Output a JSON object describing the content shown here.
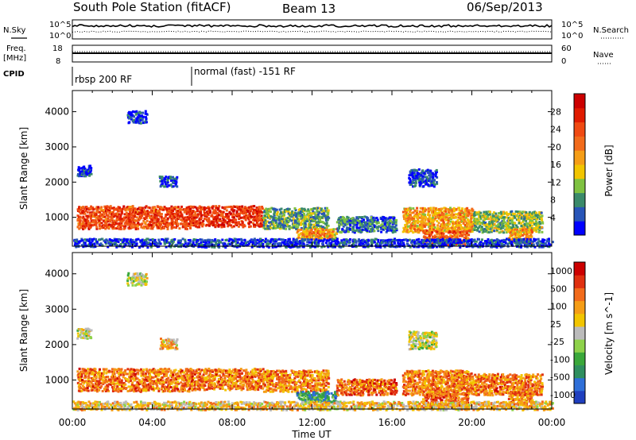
{
  "header": {
    "station": "South Pole Station (fitACF)",
    "beam": "Beam 13",
    "date": "06/Sep/2013"
  },
  "params_panel": {
    "nsky_label": "N.Sky",
    "nsky_ticks": [
      "10^5",
      "10^0"
    ],
    "nsearch_label": "N.Search",
    "nsearch_ticks": [
      "10^5",
      "10^0"
    ],
    "freq_label": "Freq.",
    "freq_unit": "[MHz]",
    "freq_ticks": [
      "18",
      "8"
    ],
    "nave_label": "Nave",
    "nave_ticks": [
      "60",
      "0"
    ],
    "cpid_label": "CPID",
    "cpid_segments": [
      {
        "label": "rbsp 200 RF",
        "start_hour": 0
      },
      {
        "label": "normal (fast) -151 RF",
        "start_hour": 6
      }
    ]
  },
  "chart_data": [
    {
      "type": "heatmap",
      "name": "power",
      "ylabel": "Slant Range [km]",
      "xlabel": "",
      "x_ticks": [
        "00:00",
        "04:00",
        "08:00",
        "12:00",
        "16:00",
        "20:00",
        "00:00"
      ],
      "xlim_hours": [
        0,
        24
      ],
      "ylim_km": [
        180,
        4600
      ],
      "y_ticks": [
        1000,
        2000,
        3000,
        4000
      ],
      "colorbar": {
        "label": "Power [dB]",
        "ticks": [
          "4",
          "8",
          "12",
          "16",
          "20",
          "24",
          "28"
        ],
        "colors": [
          "#0000ff",
          "#2855b8",
          "#3a8a6a",
          "#7fc241",
          "#f2c500",
          "#f59d16",
          "#f26b1b",
          "#f04a12",
          "#e01b00",
          "#cc0000"
        ]
      },
      "regions": [
        {
          "h0": 0.2,
          "h1": 6.0,
          "r0": 700,
          "r1": 1350,
          "level": 0.75
        },
        {
          "h0": 6.0,
          "h1": 9.5,
          "r0": 750,
          "r1": 1350,
          "level": 0.8
        },
        {
          "h0": 9.5,
          "h1": 12.8,
          "r0": 700,
          "r1": 1300,
          "level": 0.3
        },
        {
          "h0": 11.2,
          "h1": 13.2,
          "r0": 400,
          "r1": 700,
          "level": 0.55
        },
        {
          "h0": 13.2,
          "h1": 16.2,
          "r0": 600,
          "r1": 1050,
          "level": 0.2
        },
        {
          "h0": 16.5,
          "h1": 20.0,
          "r0": 600,
          "r1": 1300,
          "level": 0.55
        },
        {
          "h0": 17.5,
          "h1": 19.8,
          "r0": 250,
          "r1": 650,
          "level": 0.7
        },
        {
          "h0": 20.0,
          "h1": 23.5,
          "r0": 600,
          "r1": 1200,
          "level": 0.35
        },
        {
          "h0": 21.8,
          "h1": 23.0,
          "r0": 300,
          "r1": 700,
          "level": 0.55
        },
        {
          "h0": 0.0,
          "h1": 24.0,
          "r0": 180,
          "r1": 420,
          "level": 0.1
        },
        {
          "h0": 2.7,
          "h1": 3.7,
          "r0": 3700,
          "r1": 4050,
          "level": 0.08
        },
        {
          "h0": 0.2,
          "h1": 0.9,
          "r0": 2200,
          "r1": 2500,
          "level": 0.08
        },
        {
          "h0": 16.8,
          "h1": 18.2,
          "r0": 1900,
          "r1": 2400,
          "level": 0.12
        },
        {
          "h0": 4.3,
          "h1": 5.2,
          "r0": 1900,
          "r1": 2200,
          "level": 0.1
        }
      ]
    },
    {
      "type": "heatmap",
      "name": "velocity",
      "ylabel": "Slant Range [km]",
      "xlabel": "Time UT",
      "x_ticks": [
        "00:00",
        "04:00",
        "08:00",
        "12:00",
        "16:00",
        "20:00",
        "00:00"
      ],
      "xlim_hours": [
        0,
        24
      ],
      "ylim_km": [
        180,
        4600
      ],
      "y_ticks": [
        1000,
        2000,
        3000,
        4000
      ],
      "colorbar": {
        "label": "Velocity [m s^-1]",
        "ticks": [
          "1000",
          "500",
          "100",
          "25",
          "-25",
          "-100",
          "-500",
          "-1000"
        ],
        "colors": [
          "#1f3fbf",
          "#2f6fd8",
          "#2f8f5f",
          "#3aa83a",
          "#8ed24a",
          "#bbbbbb",
          "#f2c500",
          "#f59d16",
          "#f26b1b",
          "#e03010",
          "#cc0000"
        ]
      },
      "regions": [
        {
          "h0": 0.2,
          "h1": 6.0,
          "r0": 700,
          "r1": 1350,
          "level": 0.75
        },
        {
          "h0": 6.0,
          "h1": 9.5,
          "r0": 750,
          "r1": 1350,
          "level": 0.75
        },
        {
          "h0": 9.5,
          "h1": 12.8,
          "r0": 700,
          "r1": 1300,
          "level": 0.72
        },
        {
          "h0": 11.2,
          "h1": 13.2,
          "r0": 400,
          "r1": 700,
          "level": 0.25
        },
        {
          "h0": 13.2,
          "h1": 16.2,
          "r0": 600,
          "r1": 1050,
          "level": 0.78
        },
        {
          "h0": 16.5,
          "h1": 20.0,
          "r0": 600,
          "r1": 1300,
          "level": 0.73
        },
        {
          "h0": 17.5,
          "h1": 19.8,
          "r0": 250,
          "r1": 650,
          "level": 0.8
        },
        {
          "h0": 20.0,
          "h1": 23.5,
          "r0": 600,
          "r1": 1200,
          "level": 0.75
        },
        {
          "h0": 21.8,
          "h1": 23.0,
          "r0": 300,
          "r1": 700,
          "level": 0.76
        },
        {
          "h0": 0.0,
          "h1": 24.0,
          "r0": 180,
          "r1": 420,
          "level": 0.6
        },
        {
          "h0": 2.7,
          "h1": 3.7,
          "r0": 3700,
          "r1": 4050,
          "level": 0.5
        },
        {
          "h0": 0.2,
          "h1": 0.9,
          "r0": 2200,
          "r1": 2500,
          "level": 0.5
        },
        {
          "h0": 16.8,
          "h1": 18.2,
          "r0": 1900,
          "r1": 2400,
          "level": 0.5
        },
        {
          "h0": 4.3,
          "h1": 5.2,
          "r0": 1900,
          "r1": 2200,
          "level": 0.6
        }
      ]
    }
  ]
}
